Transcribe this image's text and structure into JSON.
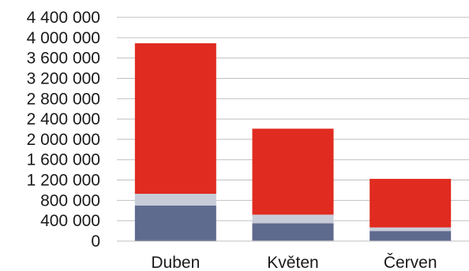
{
  "chart_data": {
    "type": "bar",
    "stacked": true,
    "categories": [
      "Duben",
      "Květen",
      "Červen"
    ],
    "series": [
      {
        "values": [
          20000,
          10000,
          8000
        ],
        "color": "#3c4a72"
      },
      {
        "values": [
          680000,
          340000,
          190000
        ],
        "color": "#5e6a8e"
      },
      {
        "values": [
          230000,
          170000,
          70000
        ],
        "color": "#c8ccd8"
      },
      {
        "values": [
          2960000,
          1690000,
          955000
        ],
        "color": "#e02b20"
      }
    ],
    "ylim": [
      0,
      4400000
    ],
    "yticks": [
      0,
      400000,
      800000,
      1200000,
      1600000,
      2000000,
      2400000,
      2800000,
      3200000,
      3600000,
      4000000,
      4400000
    ],
    "ytick_labels": [
      "0",
      "400 000",
      "800 000",
      "1 200 000",
      "1 600 000",
      "2 000 000",
      "2 400 000",
      "2 800 000",
      "3 200 000",
      "3 600 000",
      "4 000 000",
      "4 400 000"
    ],
    "grid": true,
    "title": "",
    "xlabel": "",
    "ylabel": ""
  }
}
